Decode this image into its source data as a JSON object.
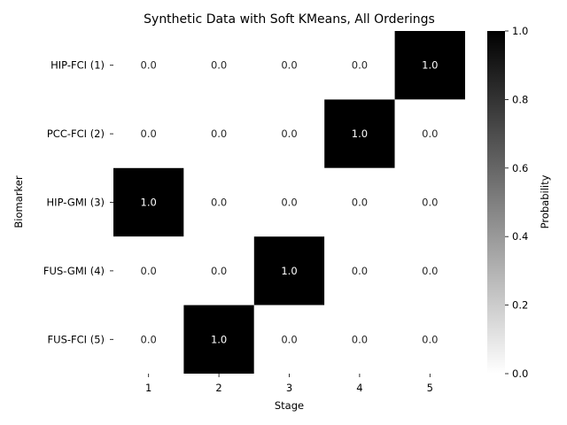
{
  "chart_data": {
    "type": "heatmap",
    "title": "Synthetic Data with Soft KMeans, All Orderings",
    "xlabel": "Stage",
    "ylabel": "Biomarker",
    "x_categories": [
      "1",
      "2",
      "3",
      "4",
      "5"
    ],
    "y_categories": [
      "HIP-FCI (1)",
      "PCC-FCI (2)",
      "HIP-GMI (3)",
      "FUS-GMI (4)",
      "FUS-FCI (5)"
    ],
    "values": [
      [
        0.0,
        0.0,
        0.0,
        0.0,
        1.0
      ],
      [
        0.0,
        0.0,
        0.0,
        1.0,
        0.0
      ],
      [
        1.0,
        0.0,
        0.0,
        0.0,
        0.0
      ],
      [
        0.0,
        0.0,
        1.0,
        0.0,
        0.0
      ],
      [
        0.0,
        1.0,
        0.0,
        0.0,
        0.0
      ]
    ],
    "value_format": "0.0",
    "colormap": {
      "low": "#ffffff",
      "high": "#000000"
    },
    "colorbar": {
      "label": "Probability",
      "range": [
        0.0,
        1.0
      ],
      "ticks": [
        "0.0",
        "0.2",
        "0.4",
        "0.6",
        "0.8",
        "1.0"
      ]
    }
  }
}
